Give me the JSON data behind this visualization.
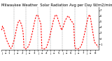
{
  "title": "Milwaukee Weather  Solar Radiation Avg per Day W/m2/minute",
  "line_color": "#ff0000",
  "line_style": "--",
  "line_width": 0.8,
  "grid_color": "#999999",
  "background_color": "#ffffff",
  "ylim": [
    0,
    7.5
  ],
  "yticks": [
    1,
    2,
    3,
    4,
    5,
    6,
    7
  ],
  "title_fontsize": 3.8,
  "tick_fontsize": 2.8,
  "values": [
    3.5,
    4.2,
    3.8,
    3.2,
    2.5,
    2.0,
    1.5,
    1.2,
    0.8,
    0.5,
    0.4,
    0.6,
    1.0,
    1.5,
    2.2,
    3.0,
    3.8,
    4.5,
    5.0,
    5.2,
    5.0,
    4.5,
    4.0,
    3.5,
    0.5,
    0.3,
    0.2,
    0.3,
    0.5,
    0.8,
    1.2,
    1.8,
    2.5,
    3.2,
    4.0,
    4.8,
    5.5,
    6.0,
    6.2,
    6.0,
    5.5,
    5.0,
    4.5,
    4.0,
    0.3,
    0.2,
    0.2,
    0.3,
    0.5,
    1.0,
    1.5,
    2.0,
    2.8,
    3.5,
    4.2,
    5.0,
    5.5,
    6.0,
    6.2,
    6.0,
    5.5,
    5.0,
    4.5,
    4.0,
    3.5,
    3.8,
    4.2,
    4.8,
    5.2,
    5.5,
    5.8,
    6.0,
    5.8,
    5.5,
    5.2,
    5.0,
    4.8,
    4.5,
    4.2,
    0.8,
    0.3,
    0.2,
    0.2,
    0.3,
    0.5,
    0.8,
    1.2,
    1.8,
    2.5,
    3.2,
    4.0,
    4.8,
    5.5,
    6.0,
    6.2,
    5.5,
    4.5,
    3.5,
    2.5,
    1.5,
    1.2,
    1.0,
    0.8,
    0.5
  ],
  "vgrid_positions": [
    13,
    26,
    39,
    52,
    65,
    78,
    91
  ],
  "xtick_positions": [
    0,
    4,
    8,
    13,
    17,
    22,
    26,
    30,
    35,
    39,
    43,
    48,
    52,
    56,
    61,
    65,
    69,
    74,
    78,
    82,
    87,
    91,
    95,
    100
  ],
  "xtick_labels": [
    "j",
    "a",
    "1",
    "j",
    "a",
    "2",
    "j",
    "a",
    "3",
    "j",
    "a",
    "4",
    "j",
    "a",
    "5",
    "j",
    "a",
    "6",
    "j",
    "a",
    "7",
    "j",
    "a",
    "8"
  ]
}
